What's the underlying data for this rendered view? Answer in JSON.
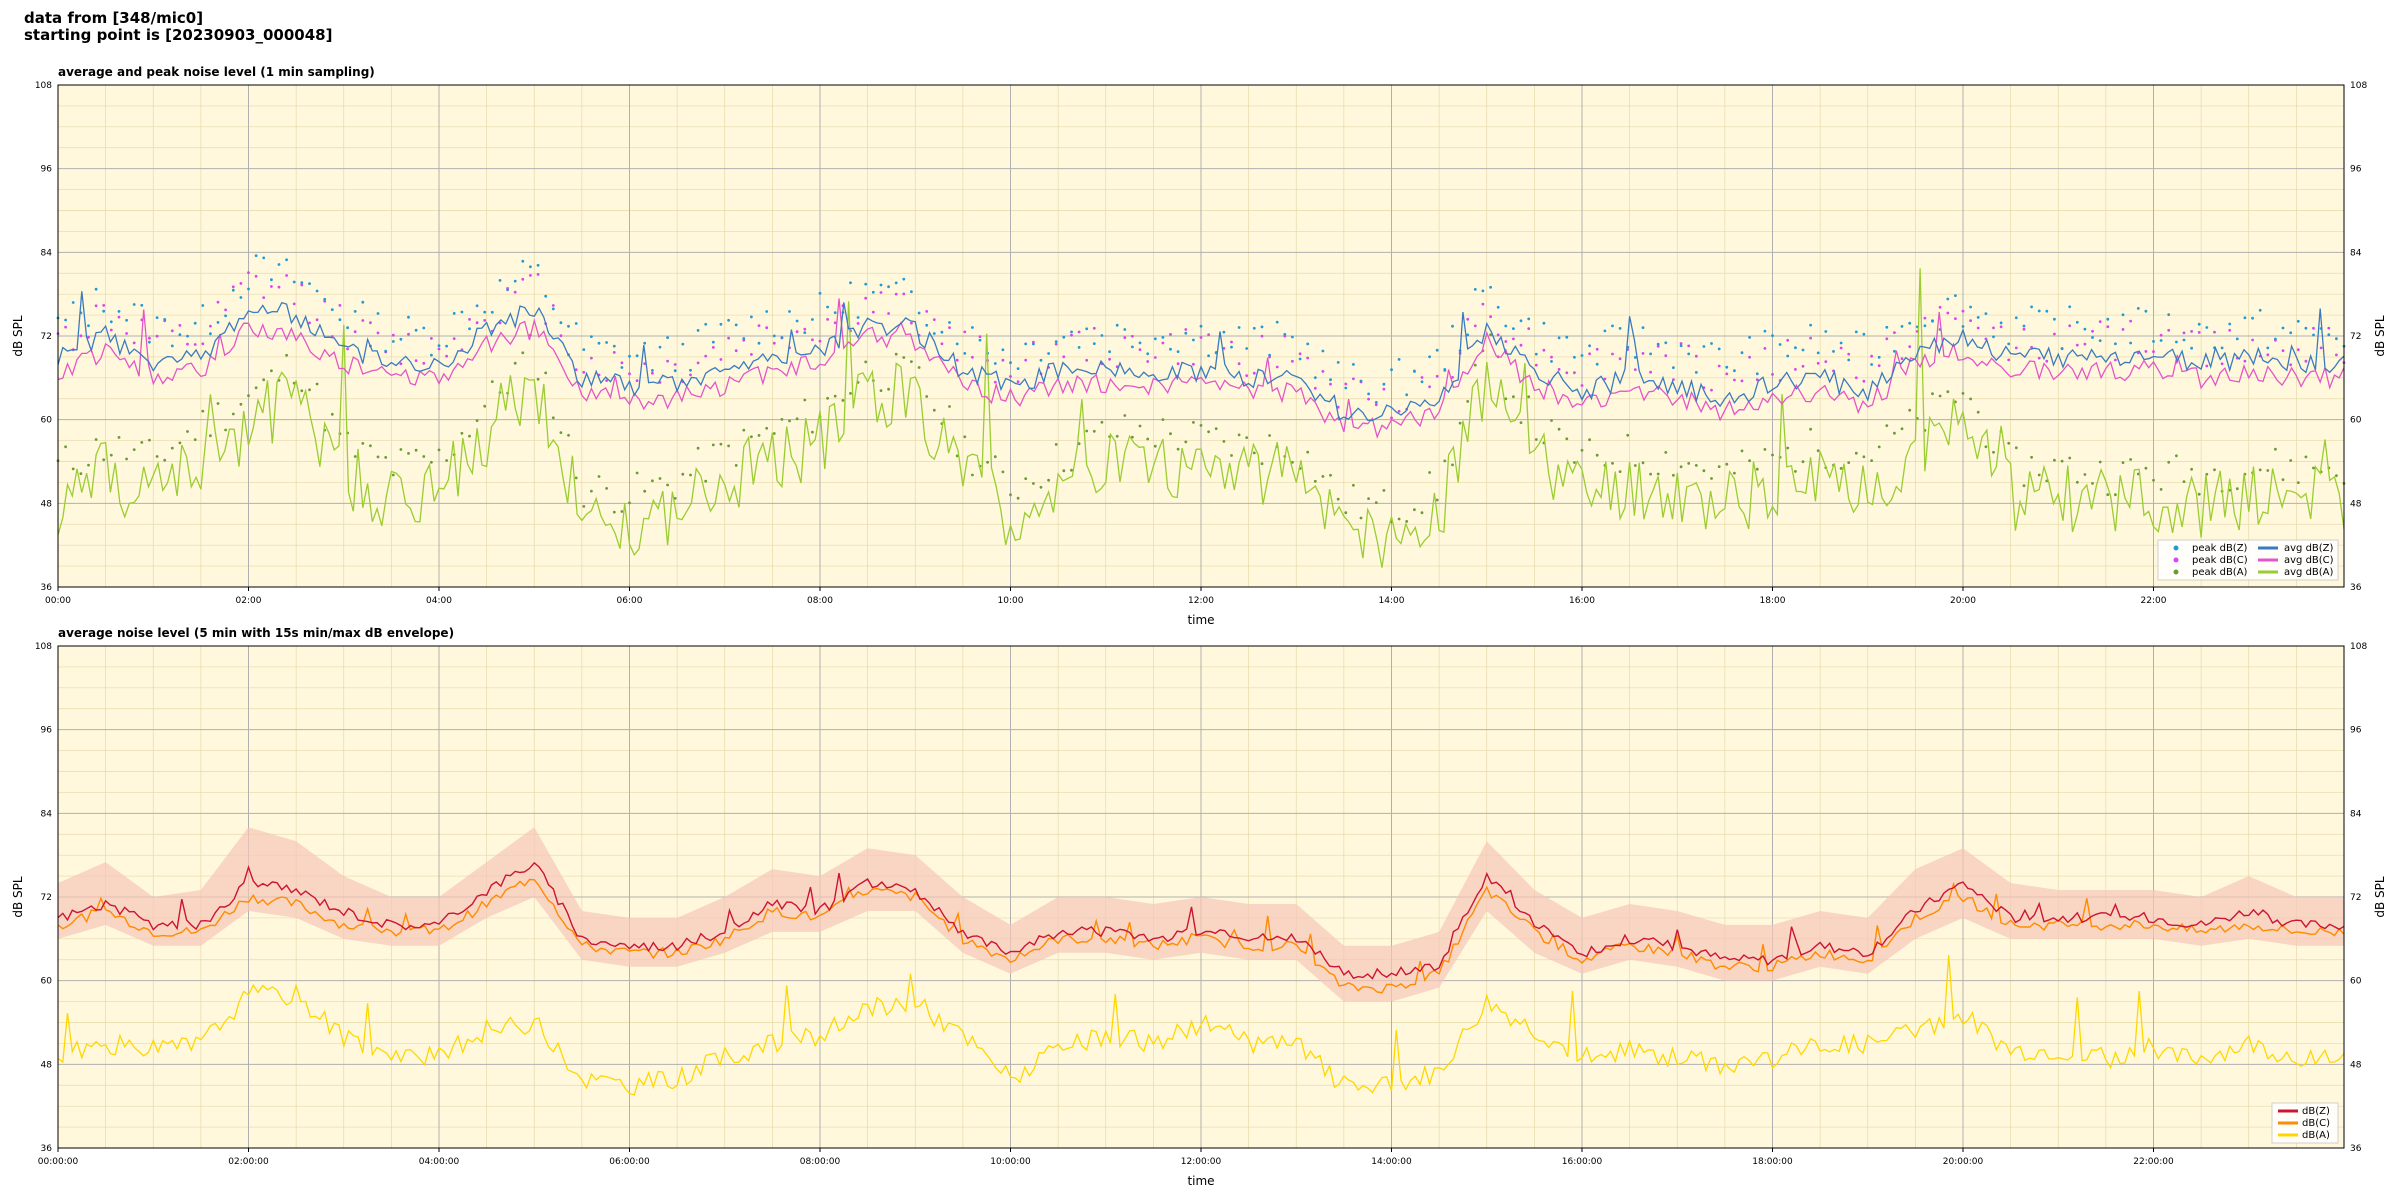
{
  "header": {
    "line1": "data from [348/mic0]",
    "line2": "starting point is [20230903_000048]"
  },
  "colors": {
    "plot_bg": "#fff8dc",
    "peak_z": "#1f9bd7",
    "peak_c": "#d946ef",
    "peak_a": "#6b9a3a",
    "avg_z": "#3a7bbf",
    "avg_c": "#e455c8",
    "avg_a": "#9acd32",
    "dbz": "#cc1530",
    "dbc": "#ff8c00",
    "dba": "#ffd700",
    "envelope": "#f7c6b8"
  },
  "chart_data": [
    {
      "type": "line",
      "title": "average and peak noise level (1 min sampling)",
      "xlabel": "time",
      "ylabel": "dB SPL",
      "xlim": [
        0,
        24
      ],
      "ylim": [
        36,
        108
      ],
      "yticks": [
        36,
        48,
        60,
        72,
        84,
        96,
        108
      ],
      "xtick_labels": [
        "00:00",
        "02:00",
        "04:00",
        "06:00",
        "08:00",
        "10:00",
        "12:00",
        "14:00",
        "16:00",
        "18:00",
        "20:00",
        "22:00"
      ],
      "grid": true,
      "legend_position": "lower-right",
      "legend": [
        "peak dB(Z)",
        "peak dB(C)",
        "peak dB(A)",
        "avg dB(Z)",
        "avg dB(C)",
        "avg dB(A)"
      ],
      "x": [
        0,
        0.5,
        1,
        1.5,
        2,
        2.5,
        3,
        3.5,
        4,
        4.5,
        5,
        5.5,
        6,
        6.5,
        7,
        7.5,
        8,
        8.5,
        9,
        9.5,
        10,
        10.5,
        11,
        11.5,
        12,
        12.5,
        13,
        13.5,
        14,
        14.5,
        15,
        15.5,
        16,
        16.5,
        17,
        17.5,
        18,
        18.5,
        19,
        19.5,
        20,
        20.5,
        21,
        21.5,
        22,
        22.5,
        23,
        23.5,
        24
      ],
      "series": [
        {
          "name": "avg dB(Z)",
          "values": [
            69,
            72,
            68,
            69,
            76,
            75,
            70,
            68,
            68,
            73,
            76,
            66,
            65,
            65,
            67,
            69,
            70,
            74,
            73,
            67,
            65,
            67,
            67,
            67,
            67,
            66,
            66,
            61,
            61,
            63,
            73,
            67,
            64,
            66,
            65,
            63,
            65,
            66,
            64,
            70,
            72,
            69,
            69,
            69,
            69,
            68,
            69,
            68,
            68
          ]
        },
        {
          "name": "avg dB(C)",
          "values": [
            67,
            70,
            66,
            67,
            73,
            72,
            68,
            66,
            66,
            71,
            73,
            64,
            63,
            63,
            65,
            67,
            68,
            72,
            71,
            65,
            63,
            65,
            65,
            65,
            65,
            64,
            64,
            59,
            59,
            61,
            71,
            65,
            62,
            64,
            63,
            61,
            63,
            64,
            62,
            68,
            70,
            67,
            67,
            67,
            67,
            66,
            67,
            66,
            66
          ]
        },
        {
          "name": "avg dB(A)",
          "values": [
            48,
            52,
            49,
            55,
            59,
            64,
            52,
            49,
            50,
            58,
            66,
            46,
            45,
            47,
            51,
            54,
            57,
            64,
            63,
            52,
            46,
            50,
            54,
            54,
            53,
            52,
            52,
            44,
            43,
            46,
            66,
            55,
            50,
            51,
            50,
            48,
            50,
            52,
            51,
            55,
            60,
            49,
            49,
            48,
            48,
            48,
            49,
            49,
            49
          ]
        },
        {
          "name": "peak dB(Z)",
          "values": [
            72,
            76,
            72,
            72,
            80,
            79,
            74,
            71,
            71,
            76,
            80,
            69,
            68,
            68,
            71,
            73,
            74,
            77,
            76,
            71,
            68,
            71,
            71,
            71,
            71,
            70,
            70,
            64,
            64,
            67,
            77,
            71,
            68,
            70,
            69,
            67,
            69,
            70,
            68,
            74,
            75,
            72,
            72,
            72,
            72,
            71,
            72,
            71,
            71
          ]
        },
        {
          "name": "peak dB(C)",
          "values": [
            70,
            74,
            70,
            70,
            78,
            77,
            72,
            69,
            69,
            74,
            78,
            67,
            66,
            66,
            69,
            71,
            72,
            75,
            74,
            69,
            66,
            69,
            69,
            69,
            69,
            68,
            68,
            62,
            62,
            65,
            75,
            69,
            66,
            68,
            67,
            65,
            67,
            68,
            66,
            72,
            73,
            70,
            70,
            70,
            70,
            69,
            70,
            69,
            69
          ]
        },
        {
          "name": "peak dB(A)",
          "values": [
            52,
            55,
            53,
            58,
            62,
            67,
            55,
            52,
            53,
            61,
            69,
            49,
            48,
            50,
            54,
            57,
            60,
            66,
            65,
            55,
            49,
            53,
            57,
            57,
            56,
            55,
            55,
            47,
            46,
            49,
            69,
            58,
            53,
            54,
            53,
            51,
            53,
            55,
            54,
            58,
            63,
            52,
            52,
            51,
            51,
            51,
            52,
            52,
            52
          ]
        }
      ]
    },
    {
      "type": "line",
      "title": "average noise level (5 min with 15s min/max dB envelope)",
      "xlabel": "time",
      "ylabel": "dB SPL",
      "xlim": [
        0,
        24
      ],
      "ylim": [
        36,
        108
      ],
      "yticks": [
        36,
        48,
        60,
        72,
        84,
        96,
        108
      ],
      "xtick_labels": [
        "00:00:00",
        "02:00:00",
        "04:00:00",
        "06:00:00",
        "08:00:00",
        "10:00:00",
        "12:00:00",
        "14:00:00",
        "16:00:00",
        "18:00:00",
        "20:00:00",
        "22:00:00"
      ],
      "grid": true,
      "legend_position": "lower-right",
      "legend": [
        "dB(Z)",
        "dB(C)",
        "dB(A)"
      ],
      "x": [
        0,
        0.5,
        1,
        1.5,
        2,
        2.5,
        3,
        3.5,
        4,
        4.5,
        5,
        5.5,
        6,
        6.5,
        7,
        7.5,
        8,
        8.5,
        9,
        9.5,
        10,
        10.5,
        11,
        11.5,
        12,
        12.5,
        13,
        13.5,
        14,
        14.5,
        15,
        15.5,
        16,
        16.5,
        17,
        17.5,
        18,
        18.5,
        19,
        19.5,
        20,
        20.5,
        21,
        21.5,
        22,
        22.5,
        23,
        23.5,
        24
      ],
      "series": [
        {
          "name": "dB(Z)",
          "values": [
            69,
            71,
            68,
            68,
            74,
            73,
            70,
            68,
            68,
            73,
            77,
            66,
            65,
            65,
            67,
            71,
            70,
            74,
            73,
            67,
            64,
            67,
            67,
            66,
            67,
            66,
            66,
            61,
            61,
            62,
            75,
            68,
            64,
            66,
            65,
            63,
            63,
            65,
            64,
            70,
            74,
            69,
            69,
            69,
            69,
            68,
            70,
            68,
            68
          ]
        },
        {
          "name": "dB(C)",
          "values": [
            68,
            70,
            67,
            67,
            72,
            71,
            68,
            67,
            67,
            71,
            75,
            65,
            64,
            64,
            66,
            70,
            69,
            73,
            72,
            66,
            63,
            66,
            66,
            65,
            66,
            65,
            65,
            59,
            59,
            61,
            73,
            67,
            63,
            65,
            64,
            62,
            62,
            64,
            63,
            69,
            72,
            68,
            68,
            68,
            68,
            67,
            68,
            67,
            67
          ]
        },
        {
          "name": "dB(A)",
          "values": [
            49,
            51,
            50,
            51,
            58,
            58,
            52,
            49,
            49,
            53,
            54,
            46,
            45,
            46,
            49,
            51,
            52,
            56,
            57,
            52,
            46,
            50,
            52,
            51,
            54,
            51,
            51,
            45,
            45,
            47,
            57,
            53,
            49,
            50,
            49,
            48,
            49,
            51,
            51,
            53,
            55,
            50,
            50,
            49,
            49,
            49,
            51,
            49,
            49
          ]
        },
        {
          "name": "envelope max",
          "values": [
            74,
            77,
            72,
            73,
            82,
            80,
            75,
            72,
            72,
            77,
            82,
            70,
            69,
            69,
            72,
            76,
            75,
            79,
            78,
            72,
            68,
            72,
            72,
            71,
            72,
            71,
            71,
            65,
            65,
            67,
            80,
            73,
            69,
            71,
            70,
            68,
            68,
            70,
            69,
            76,
            79,
            74,
            73,
            73,
            73,
            72,
            75,
            72,
            72
          ]
        },
        {
          "name": "envelope min",
          "values": [
            66,
            68,
            65,
            65,
            70,
            69,
            66,
            65,
            65,
            69,
            72,
            63,
            62,
            62,
            64,
            67,
            67,
            70,
            70,
            64,
            61,
            64,
            64,
            63,
            64,
            63,
            63,
            57,
            57,
            59,
            70,
            64,
            61,
            63,
            62,
            60,
            60,
            62,
            61,
            66,
            69,
            66,
            66,
            66,
            66,
            65,
            66,
            65,
            65
          ]
        }
      ]
    }
  ]
}
